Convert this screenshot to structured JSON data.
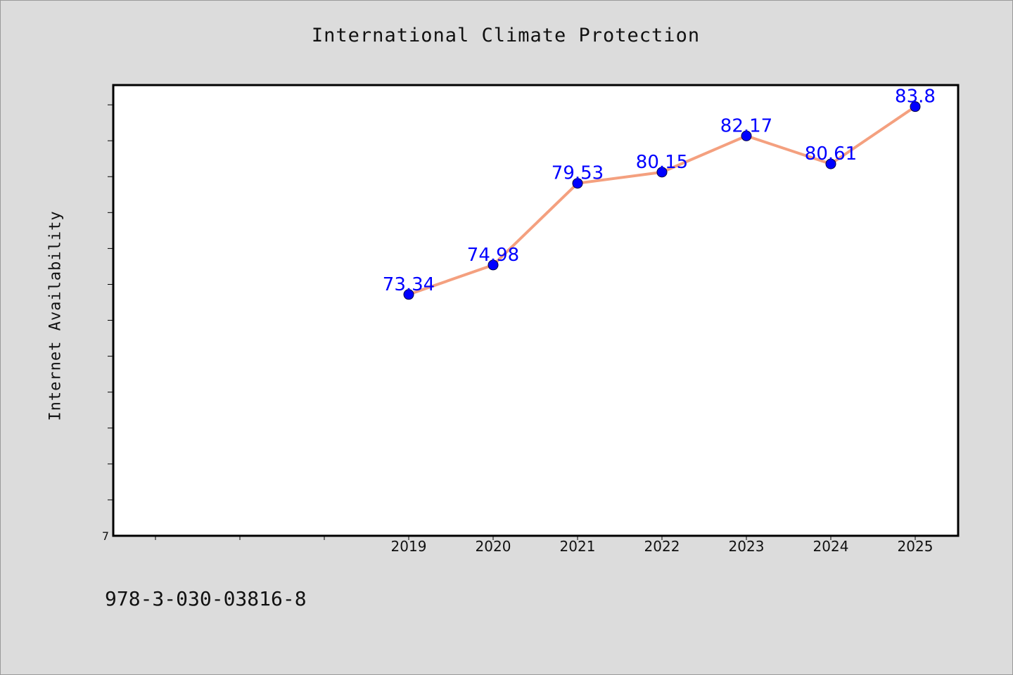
{
  "chart_data": {
    "type": "line",
    "title": "International Climate Protection",
    "xlabel": "",
    "ylabel": "Internet Availability",
    "categories": [
      "2019",
      "2020",
      "2021",
      "2022",
      "2023",
      "2024",
      "2025"
    ],
    "values": [
      73.34,
      74.98,
      79.53,
      80.15,
      82.17,
      80.61,
      83.8
    ],
    "data_labels": [
      "73.34",
      "74.98",
      "79.53",
      "80.15",
      "82.17",
      "80.61",
      "83.8"
    ],
    "y_tick_labels": [
      "7"
    ],
    "ylim": [
      59.9,
      85.0
    ],
    "x_slots": 10,
    "grid": false,
    "legend": "none",
    "colors": {
      "line": "#f4a07f",
      "marker": "#0000ff",
      "label": "#0000ff"
    }
  },
  "footer": {
    "text": "978-3-030-03816-8"
  }
}
